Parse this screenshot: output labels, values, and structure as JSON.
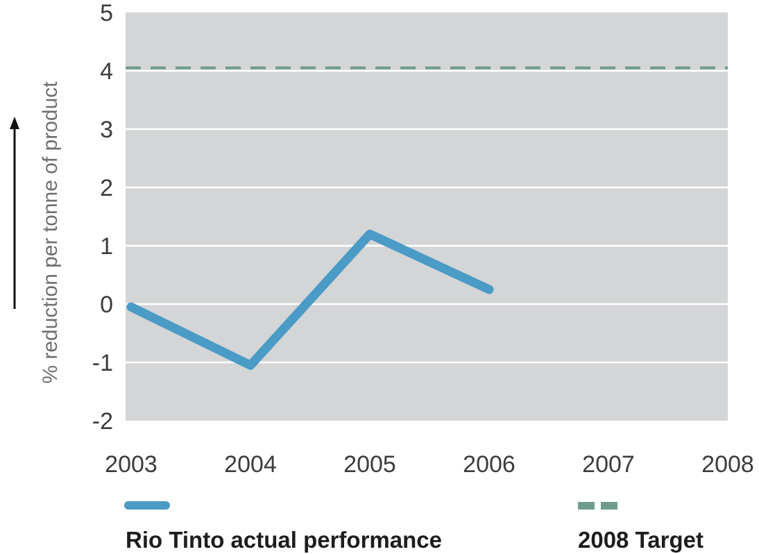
{
  "chart_data": {
    "type": "line",
    "ylabel": "% reduction per tonne of product",
    "x": [
      "2003",
      "2004",
      "2005",
      "2006",
      "2007",
      "2008"
    ],
    "ylim": [
      -2,
      5
    ],
    "yticks": [
      "5",
      "4",
      "3",
      "2",
      "1",
      "0",
      "-1",
      "-2"
    ],
    "ytick_values": [
      5,
      4,
      3,
      2,
      1,
      0,
      -1,
      -2
    ],
    "grid": true,
    "legend_position": "bottom",
    "series": [
      {
        "name": "Rio Tinto actual performance",
        "x": [
          "2003",
          "2004",
          "2005",
          "2006"
        ],
        "values": [
          -0.05,
          -1.05,
          1.2,
          0.25
        ],
        "style": "solid",
        "color": "#4a9bc5"
      },
      {
        "name": "2008 Target",
        "value": 4.05,
        "style": "dashed",
        "color": "#6f9c8c"
      }
    ],
    "colors": {
      "plot_background": "#d3d5d7",
      "grid": "#ffffff"
    }
  }
}
